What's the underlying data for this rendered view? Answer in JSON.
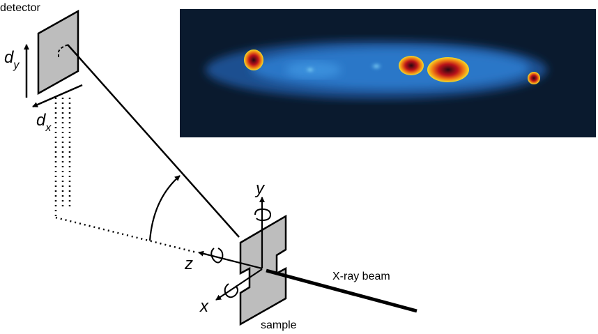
{
  "labels": {
    "detector": "detector",
    "dy_main": "d",
    "dy_sub": "y",
    "dx_main": "d",
    "dx_sub": "x",
    "y_axis": "y",
    "z_axis": "z",
    "x_axis": "x",
    "beam": "X-ray beam",
    "sample": "sample"
  },
  "colors": {
    "line": "#000000",
    "panel_fill": "#bdbdbd",
    "image_bg": "#0a1a2e",
    "glow": "#2c7fd0",
    "spot_outer": "#e8d21a",
    "spot_mid": "#d2301a",
    "spot_core": "#3a0a14"
  }
}
